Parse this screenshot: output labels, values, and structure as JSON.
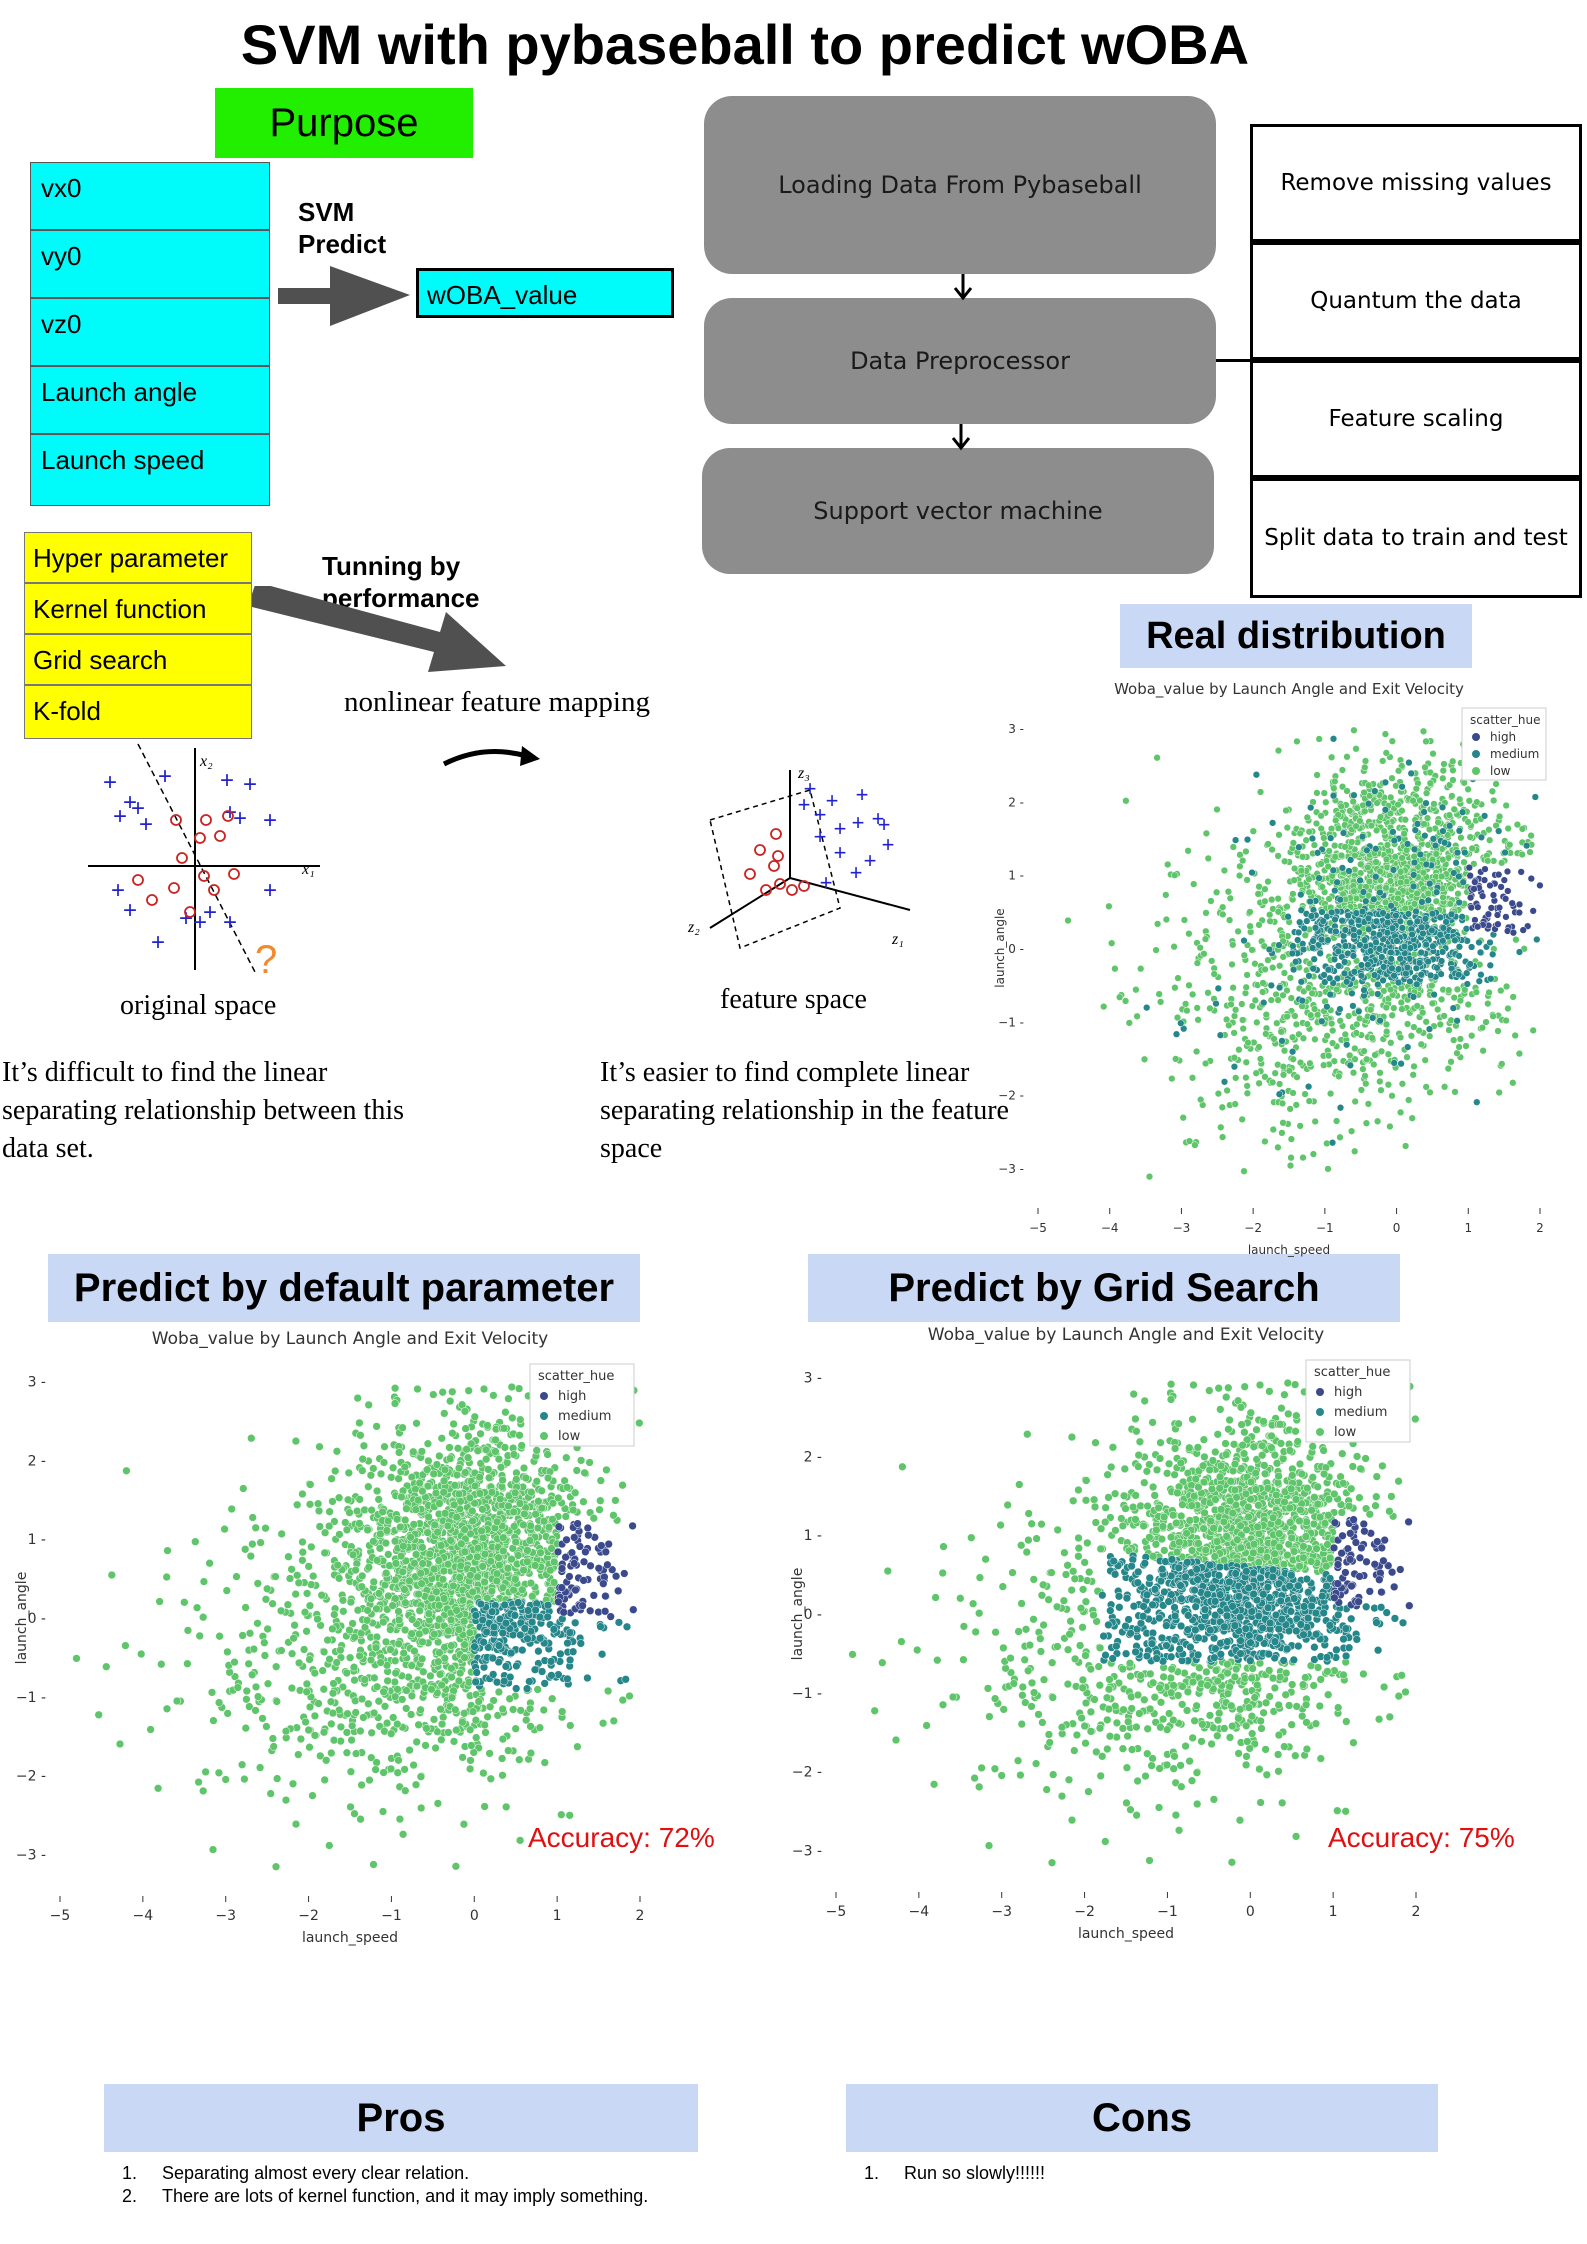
{
  "title": "SVM with pybaseball to predict wOBA",
  "purpose": {
    "label": "Purpose",
    "features": [
      "vx0",
      "vy0",
      "vz0",
      "Launch angle",
      "Launch speed"
    ],
    "arrow_label_1": "SVM",
    "arrow_label_2": "Predict",
    "target": "wOBA_value"
  },
  "pipeline": {
    "steps": [
      "Loading Data From Pybaseball",
      "Data Preprocessor",
      "Support vector machine"
    ],
    "preprocessing": [
      "Remove missing values",
      "Quantum the data",
      "Feature scaling",
      "Split data to train and test"
    ]
  },
  "tuning": {
    "items": [
      "Hyper parameter",
      "Kernel function",
      "Grid search",
      "K-fold"
    ],
    "arrow_label_1": "Tunning by",
    "arrow_label_2": "performance"
  },
  "kernel_figure": {
    "mapping_label": "nonlinear feature mapping",
    "original_label": "original space",
    "feature_label": "feature space",
    "original_note": [
      "It’s difficult to find the linear",
      "separating relationship between this",
      "data set."
    ],
    "feature_note": [
      "It’s easier to find complete linear",
      "separating relationship in the feature",
      "space"
    ],
    "question_mark": "?",
    "axis_x1": "x₁",
    "axis_x2": "x₂",
    "axis_z1": "z₁",
    "axis_z2": "z₂",
    "axis_z3": "z₃"
  },
  "sections": {
    "real": "Real distribution",
    "default": "Predict by default parameter",
    "grid": "Predict by Grid Search",
    "pros": "Pros",
    "cons": "Cons"
  },
  "plots": {
    "title": "Woba_value by Launch Angle and Exit Velocity",
    "legend_title": "scatter_hue",
    "legend": [
      "high",
      "medium",
      "low"
    ],
    "colors": {
      "high": "#3b4a8c",
      "medium": "#26878a",
      "low": "#5fc56a"
    },
    "ylabel": "launch_angle",
    "xlabel": "launch_speed",
    "xticks": [
      "−5",
      "−4",
      "−3",
      "−2",
      "−1",
      "0",
      "1",
      "2"
    ],
    "yticks": [
      "3",
      "2",
      "1",
      "0",
      "−1",
      "−2",
      "−3"
    ]
  },
  "accuracy": {
    "default": "Accuracy: 72%",
    "grid": "Accuracy: 75%"
  },
  "pros": [
    {
      "num": "1.",
      "text": "Separating almost every clear relation."
    },
    {
      "num": "2.",
      "text": "There are lots of kernel function, and it may imply something."
    }
  ],
  "cons": [
    {
      "num": "1.",
      "text": "Run so slowly!!!!!!"
    }
  ],
  "chart_data": [
    {
      "type": "scatter",
      "title": "Woba_value by Launch Angle and Exit Velocity",
      "xlabel": "launch_speed",
      "ylabel": "launch_angle",
      "xlim": [
        -5,
        2
      ],
      "ylim": [
        -3.3,
        3.3
      ],
      "legend_title": "scatter_hue",
      "series": [
        {
          "name": "high"
        },
        {
          "name": "medium"
        },
        {
          "name": "low"
        }
      ],
      "variant": "real"
    },
    {
      "type": "scatter",
      "title": "Woba_value by Launch Angle and Exit Velocity",
      "xlabel": "launch_speed",
      "ylabel": "launch_angle",
      "xlim": [
        -5,
        2
      ],
      "ylim": [
        -3.3,
        3.3
      ],
      "legend_title": "scatter_hue",
      "series": [
        {
          "name": "high"
        },
        {
          "name": "medium"
        },
        {
          "name": "low"
        }
      ],
      "variant": "default",
      "accuracy": "Accuracy: 72%"
    },
    {
      "type": "scatter",
      "title": "Woba_value by Launch Angle and Exit Velocity",
      "xlabel": "launch_speed",
      "ylabel": "launch_angle",
      "xlim": [
        -5,
        2
      ],
      "ylim": [
        -3.3,
        3.3
      ],
      "legend_title": "scatter_hue",
      "series": [
        {
          "name": "high"
        },
        {
          "name": "medium"
        },
        {
          "name": "low"
        }
      ],
      "variant": "grid",
      "accuracy": "Accuracy: 75%"
    }
  ]
}
